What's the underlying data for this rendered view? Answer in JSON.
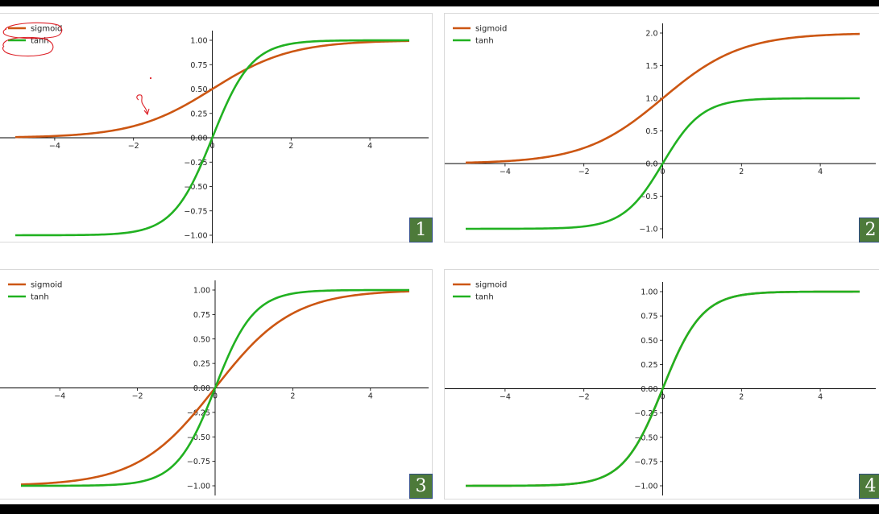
{
  "colors": {
    "sigmoid": "#cc5612",
    "tanh": "#21b121",
    "badge_bg": "#4d7a3a",
    "badge_border": "#2f4c86",
    "annotation": "#dd1f26"
  },
  "chart_data": [
    {
      "type": "line",
      "panel_number": "1",
      "xlim": [
        -5,
        5
      ],
      "ylim": [
        -1,
        1
      ],
      "x_ticks": [
        -4,
        -2,
        0,
        2,
        4
      ],
      "x_tick_labels": [
        "−4",
        "−2",
        "0",
        "2",
        "4"
      ],
      "y_ticks": [
        -1,
        -0.75,
        -0.5,
        -0.25,
        0,
        0.25,
        0.5,
        0.75,
        1
      ],
      "y_tick_labels": [
        "−1.00",
        "−0.75",
        "−0.50",
        "−0.25",
        "0.00",
        "0.25",
        "0.50",
        "0.75",
        "1.00"
      ],
      "legend_position": "top-left",
      "series": [
        {
          "name": "sigmoid",
          "formula": "1/(1+exp(-x))",
          "x": [
            -5,
            -4,
            -3,
            -2,
            -1,
            0,
            1,
            2,
            3,
            4,
            5
          ],
          "y": [
            0.007,
            0.018,
            0.047,
            0.119,
            0.269,
            0.5,
            0.731,
            0.881,
            0.953,
            0.982,
            0.993
          ]
        },
        {
          "name": "tanh",
          "formula": "tanh(x)",
          "x": [
            -5,
            -4,
            -3,
            -2,
            -1,
            0,
            1,
            2,
            3,
            4,
            5
          ],
          "y": [
            -1.0,
            -0.999,
            -0.995,
            -0.964,
            -0.762,
            0.0,
            0.762,
            0.964,
            0.995,
            0.999,
            1.0
          ]
        }
      ],
      "annotations": "red hand-drawn circles around both legend entries; small red arrow pointing to the sigmoid curve near x = -2"
    },
    {
      "type": "line",
      "panel_number": "2",
      "xlim": [
        -5,
        5
      ],
      "ylim": [
        -1,
        2
      ],
      "x_ticks": [
        -4,
        -2,
        0,
        2,
        4
      ],
      "x_tick_labels": [
        "−4",
        "−2",
        "0",
        "2",
        "4"
      ],
      "y_ticks": [
        -1,
        -0.5,
        0,
        0.5,
        1,
        1.5,
        2
      ],
      "y_tick_labels": [
        "−1.0",
        "−0.5",
        "0.0",
        "0.5",
        "1.0",
        "1.5",
        "2.0"
      ],
      "legend_position": "top-left",
      "series": [
        {
          "name": "sigmoid",
          "formula": "2/(1+exp(-x))",
          "x": [
            -5,
            -4,
            -3,
            -2,
            -1,
            0,
            1,
            2,
            3,
            4,
            5
          ],
          "y": [
            0.013,
            0.036,
            0.095,
            0.238,
            0.538,
            1.0,
            1.462,
            1.762,
            1.905,
            1.964,
            1.987
          ]
        },
        {
          "name": "tanh",
          "formula": "tanh(x)",
          "x": [
            -5,
            -4,
            -3,
            -2,
            -1,
            0,
            1,
            2,
            3,
            4,
            5
          ],
          "y": [
            -1.0,
            -0.999,
            -0.995,
            -0.964,
            -0.762,
            0.0,
            0.762,
            0.964,
            0.995,
            0.999,
            1.0
          ]
        }
      ]
    },
    {
      "type": "line",
      "panel_number": "3",
      "xlim": [
        -5,
        5
      ],
      "ylim": [
        -1,
        1
      ],
      "x_ticks": [
        -4,
        -2,
        0,
        2,
        4
      ],
      "x_tick_labels": [
        "−4",
        "−2",
        "0",
        "2",
        "4"
      ],
      "y_ticks": [
        -1,
        -0.75,
        -0.5,
        -0.25,
        0,
        0.25,
        0.5,
        0.75,
        1
      ],
      "y_tick_labels": [
        "−1.00",
        "−0.75",
        "−0.50",
        "−0.25",
        "0.00",
        "0.25",
        "0.50",
        "0.75",
        "1.00"
      ],
      "legend_position": "top-left",
      "series": [
        {
          "name": "sigmoid",
          "formula": "2/(1+exp(-x))-1",
          "x": [
            -5,
            -4,
            -3,
            -2,
            -1,
            0,
            1,
            2,
            3,
            4,
            5
          ],
          "y": [
            -0.987,
            -0.964,
            -0.905,
            -0.762,
            -0.462,
            0.0,
            0.462,
            0.762,
            0.905,
            0.964,
            0.987
          ]
        },
        {
          "name": "tanh",
          "formula": "tanh(x)",
          "x": [
            -5,
            -4,
            -3,
            -2,
            -1,
            0,
            1,
            2,
            3,
            4,
            5
          ],
          "y": [
            -1.0,
            -0.999,
            -0.995,
            -0.964,
            -0.762,
            0.0,
            0.762,
            0.964,
            0.995,
            0.999,
            1.0
          ]
        }
      ]
    },
    {
      "type": "line",
      "panel_number": "4",
      "xlim": [
        -5,
        5
      ],
      "ylim": [
        -1,
        1
      ],
      "x_ticks": [
        -4,
        -2,
        0,
        2,
        4
      ],
      "x_tick_labels": [
        "−4",
        "−2",
        "0",
        "2",
        "4"
      ],
      "y_ticks": [
        -1,
        -0.75,
        -0.5,
        -0.25,
        0,
        0.25,
        0.5,
        0.75,
        1
      ],
      "y_tick_labels": [
        "−1.00",
        "−0.75",
        "−0.50",
        "−0.25",
        "0.00",
        "0.25",
        "0.50",
        "0.75",
        "1.00"
      ],
      "legend_position": "top-left",
      "series": [
        {
          "name": "sigmoid",
          "formula": "2/(1+exp(-2x))-1",
          "x": [
            -5,
            -4,
            -3,
            -2,
            -1,
            0,
            1,
            2,
            3,
            4,
            5
          ],
          "y": [
            -1.0,
            -0.999,
            -0.995,
            -0.964,
            -0.762,
            0.0,
            0.762,
            0.964,
            0.995,
            0.999,
            1.0
          ]
        },
        {
          "name": "tanh",
          "formula": "tanh(x)",
          "x": [
            -5,
            -4,
            -3,
            -2,
            -1,
            0,
            1,
            2,
            3,
            4,
            5
          ],
          "y": [
            -1.0,
            -0.999,
            -0.995,
            -0.964,
            -0.762,
            0.0,
            0.762,
            0.964,
            0.995,
            0.999,
            1.0
          ]
        }
      ]
    }
  ]
}
